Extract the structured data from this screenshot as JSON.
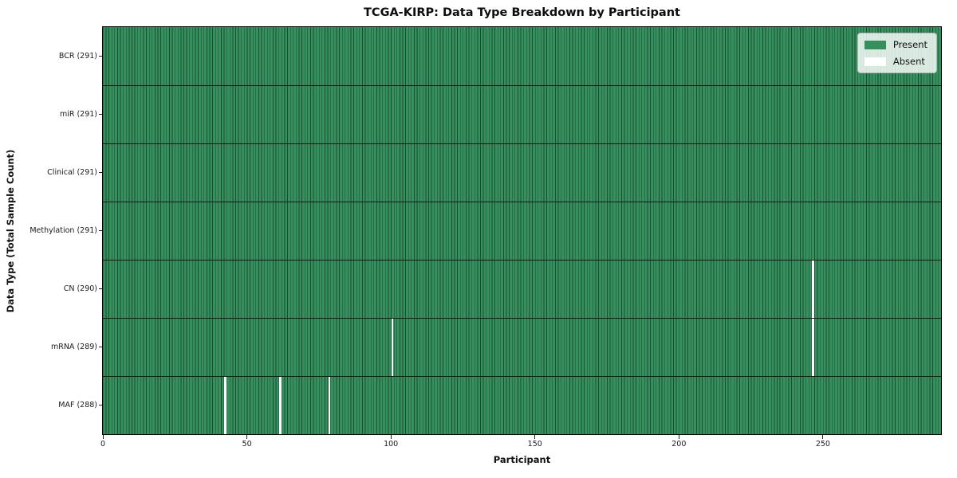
{
  "chart_data": {
    "type": "heatmap",
    "title": "TCGA-KIRP: Data Type Breakdown by Participant",
    "xlabel": "Participant",
    "ylabel": "Data Type (Total Sample Count)",
    "n_participants": 291,
    "x_range": [
      0,
      291
    ],
    "x_ticks": [
      0,
      50,
      100,
      150,
      200,
      250
    ],
    "rows": [
      {
        "data_type": "BCR",
        "label": "BCR (291)",
        "sample_count": 291,
        "absent_participants": []
      },
      {
        "data_type": "miR",
        "label": "miR (291)",
        "sample_count": 291,
        "absent_participants": []
      },
      {
        "data_type": "Clinical",
        "label": "Clinical (291)",
        "sample_count": 291,
        "absent_participants": []
      },
      {
        "data_type": "Methylation",
        "label": "Methylation (291)",
        "sample_count": 291,
        "absent_participants": []
      },
      {
        "data_type": "CN",
        "label": "CN (290)",
        "sample_count": 290,
        "absent_participants": [
          246
        ]
      },
      {
        "data_type": "mRNA",
        "label": "mRNA (289)",
        "sample_count": 289,
        "absent_participants": [
          100,
          246
        ]
      },
      {
        "data_type": "MAF",
        "label": "MAF (288)",
        "sample_count": 288,
        "absent_participants": [
          42,
          61,
          78
        ]
      }
    ],
    "legend": {
      "position": "upper right",
      "entries": [
        {
          "label": "Present",
          "color": "#35905e"
        },
        {
          "label": "Absent",
          "color": "#ffffff"
        }
      ]
    },
    "colors": {
      "present": "#35905e",
      "present_edge": "#1b4d33",
      "absent": "#ffffff",
      "separator": "#141414"
    }
  }
}
